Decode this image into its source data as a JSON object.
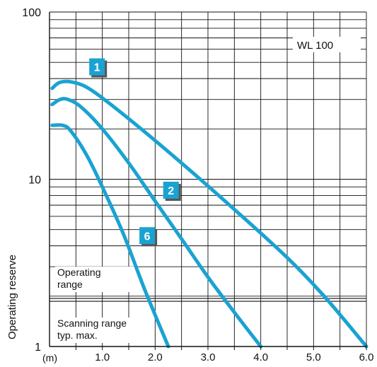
{
  "chart_data": {
    "type": "line",
    "title": "",
    "product_label": "WL 100",
    "xlabel": "(m)",
    "ylabel": "Operating reserve",
    "xlim": [
      0,
      6.0
    ],
    "ylim": [
      1,
      100
    ],
    "y_scale": "log",
    "grid": true,
    "x_ticks": [
      {
        "value": 1.0,
        "label": "1.0"
      },
      {
        "value": 2.0,
        "label": "2.0"
      },
      {
        "value": 3.0,
        "label": "3.0"
      },
      {
        "value": 4.0,
        "label": "4.0"
      },
      {
        "value": 5.0,
        "label": "5.0"
      },
      {
        "value": 6.0,
        "label": "6.0"
      }
    ],
    "y_ticks": [
      {
        "value": 1,
        "label": "1"
      },
      {
        "value": 10,
        "label": "10"
      },
      {
        "value": 100,
        "label": "100"
      }
    ],
    "reference_line": {
      "y": 1.9,
      "label_above": [
        "Operating",
        "range"
      ],
      "label_below": [
        "Scanning range",
        "typ. max."
      ]
    },
    "line_color": "#1aa3d1",
    "badge_color": "#1aa3d1",
    "series": [
      {
        "name": "1",
        "x": [
          0.05,
          0.2,
          0.45,
          0.8,
          1.5,
          2.5,
          3.5,
          4.5,
          5.2,
          6.0
        ],
        "y": [
          35,
          38,
          38,
          34,
          23,
          12.5,
          6.6,
          3.4,
          2.0,
          1.0
        ],
        "badge": {
          "x": 0.9,
          "y": 47
        }
      },
      {
        "name": "2",
        "x": [
          0.05,
          0.2,
          0.35,
          0.6,
          1.0,
          1.5,
          2.0,
          2.5,
          3.0,
          3.5,
          4.0
        ],
        "y": [
          28,
          30,
          30,
          27,
          20,
          12.5,
          7.4,
          4.4,
          2.6,
          1.6,
          1.0
        ],
        "badge": {
          "x": 2.3,
          "y": 8.6
        }
      },
      {
        "name": "6",
        "x": [
          0.05,
          0.25,
          0.4,
          0.7,
          1.0,
          1.4,
          1.8,
          2.25
        ],
        "y": [
          21,
          21,
          19.5,
          14,
          9.0,
          4.7,
          2.2,
          1.0
        ],
        "badge": {
          "x": 1.85,
          "y": 4.6
        }
      }
    ]
  }
}
